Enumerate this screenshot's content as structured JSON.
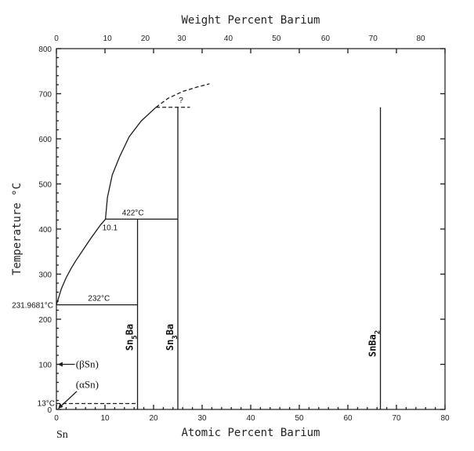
{
  "chart_data": {
    "type": "line",
    "title_top": "Weight Percent Barium",
    "xlabel": "Atomic Percent Barium",
    "ylabel": "Temperature °C",
    "xlim": [
      0,
      80
    ],
    "ylim": [
      0,
      800
    ],
    "x_ticks": [
      0,
      10,
      20,
      30,
      40,
      50,
      60,
      70,
      80
    ],
    "y_ticks": [
      0,
      100,
      200,
      300,
      400,
      500,
      600,
      700,
      800
    ],
    "top_ticks": [
      {
        "label": "0",
        "at_at_pct": 0
      },
      {
        "label": "10",
        "at_at_pct": 10.5
      },
      {
        "label": "20",
        "at_at_pct": 18.3
      },
      {
        "label": "30",
        "at_at_pct": 25.8
      },
      {
        "label": "40",
        "at_at_pct": 35.4
      },
      {
        "label": "50",
        "at_at_pct": 45.3
      },
      {
        "label": "60",
        "at_at_pct": 55.4
      },
      {
        "label": "70",
        "at_at_pct": 65.2
      },
      {
        "label": "80",
        "at_at_pct": 75.0
      }
    ],
    "liquidus_low": [
      [
        0,
        232
      ],
      [
        1,
        267
      ],
      [
        2,
        292
      ],
      [
        3,
        312
      ],
      [
        4,
        330
      ],
      [
        5,
        346
      ],
      [
        6,
        362
      ],
      [
        7,
        378
      ],
      [
        8,
        393
      ],
      [
        9,
        408
      ],
      [
        10.1,
        422
      ]
    ],
    "liquidus_high": [
      [
        10.1,
        422
      ],
      [
        10.5,
        470
      ],
      [
        11.5,
        520
      ],
      [
        13,
        560
      ],
      [
        15,
        605
      ],
      [
        17.5,
        640
      ],
      [
        20.5,
        670
      ]
    ],
    "liquidus_dashed": [
      [
        20.5,
        670
      ],
      [
        23,
        690
      ],
      [
        26,
        705
      ],
      [
        29,
        715
      ],
      [
        31.5,
        722
      ]
    ],
    "peritectic_dashed": {
      "x1": 20.5,
      "x2": 27.5,
      "y": 670
    },
    "eutectic_line": {
      "x1": 0,
      "x2": 16.7,
      "y": 232
    },
    "peritectic_line": {
      "x1": 10.1,
      "x2": 25,
      "y": 422
    },
    "alpha_beta_dashed": {
      "x1": 0,
      "x2": 16.7,
      "y": 13
    },
    "compounds": [
      {
        "name": "Sn5Ba",
        "x": 16.7,
        "ytop": 422
      },
      {
        "name": "Sn3Ba",
        "x": 25.0,
        "ytop": 670
      },
      {
        "name": "SnBa2",
        "x": 66.7,
        "ytop": 670
      }
    ],
    "annotations": {
      "t422": "422°C",
      "t232": "232°C",
      "q": "?",
      "c101": "10.1",
      "melt": "231.9681°C",
      "t13": "13°C",
      "beta": "(βSn)",
      "alpha": "(αSn)",
      "sn": "Sn"
    },
    "phase_labels": {
      "sn5ba": "Sn5Ba",
      "sn3ba": "Sn3Ba",
      "snba2": "SnBa2"
    }
  }
}
